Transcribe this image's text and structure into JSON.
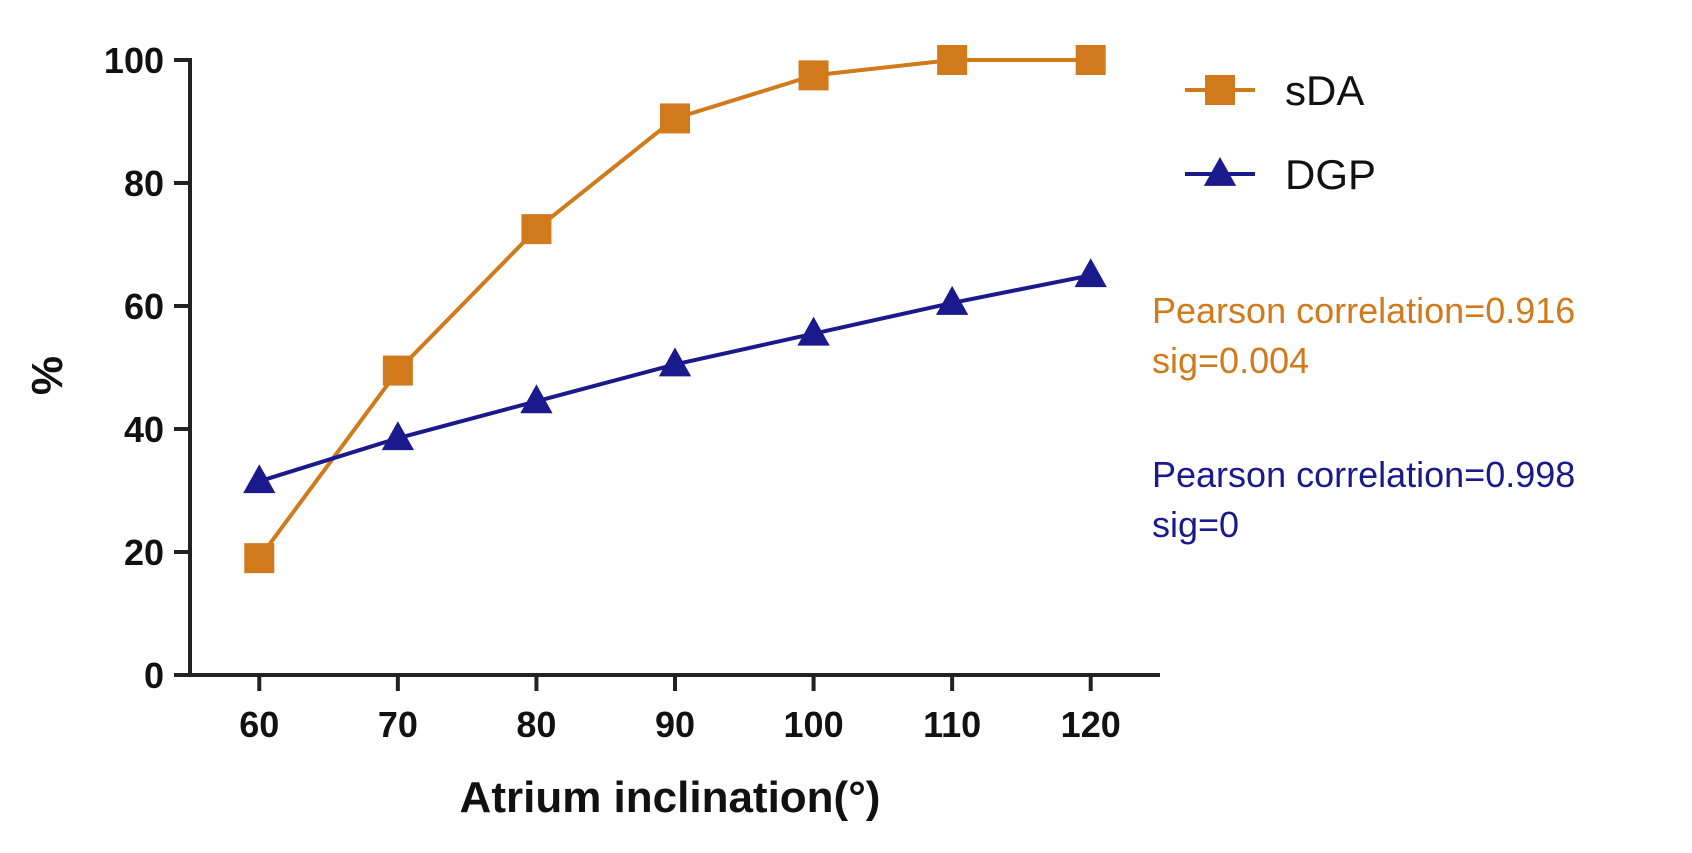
{
  "chart_data": {
    "type": "line",
    "title": "",
    "xlabel": "Atrium inclination(°)",
    "ylabel": "%",
    "x": [
      60,
      70,
      80,
      90,
      100,
      110,
      120
    ],
    "xlim": [
      55,
      125
    ],
    "ylim": [
      0,
      100
    ],
    "xticks": [
      "60",
      "70",
      "80",
      "90",
      "100",
      "110",
      "120"
    ],
    "yticks": [
      "0",
      "20",
      "40",
      "60",
      "80",
      "100"
    ],
    "grid": false,
    "legend_position": "top-right",
    "series": [
      {
        "name": "sDA",
        "marker": "square",
        "color": "#D07A1C",
        "values": [
          19,
          49.5,
          72.5,
          90.5,
          97.5,
          100,
          100
        ]
      },
      {
        "name": "DGP",
        "marker": "triangle",
        "color": "#1A1A8C",
        "values": [
          31.5,
          38.5,
          44.5,
          50.5,
          55.5,
          60.5,
          65
        ]
      }
    ],
    "annotations": [
      {
        "series": "sDA",
        "color": "#D07A1C",
        "line1": "Pearson correlation=0.916",
        "line2": "sig=0.004"
      },
      {
        "series": "DGP",
        "color": "#1A1A8C",
        "line1": "Pearson correlation=0.998",
        "line2": "sig=0"
      }
    ]
  }
}
